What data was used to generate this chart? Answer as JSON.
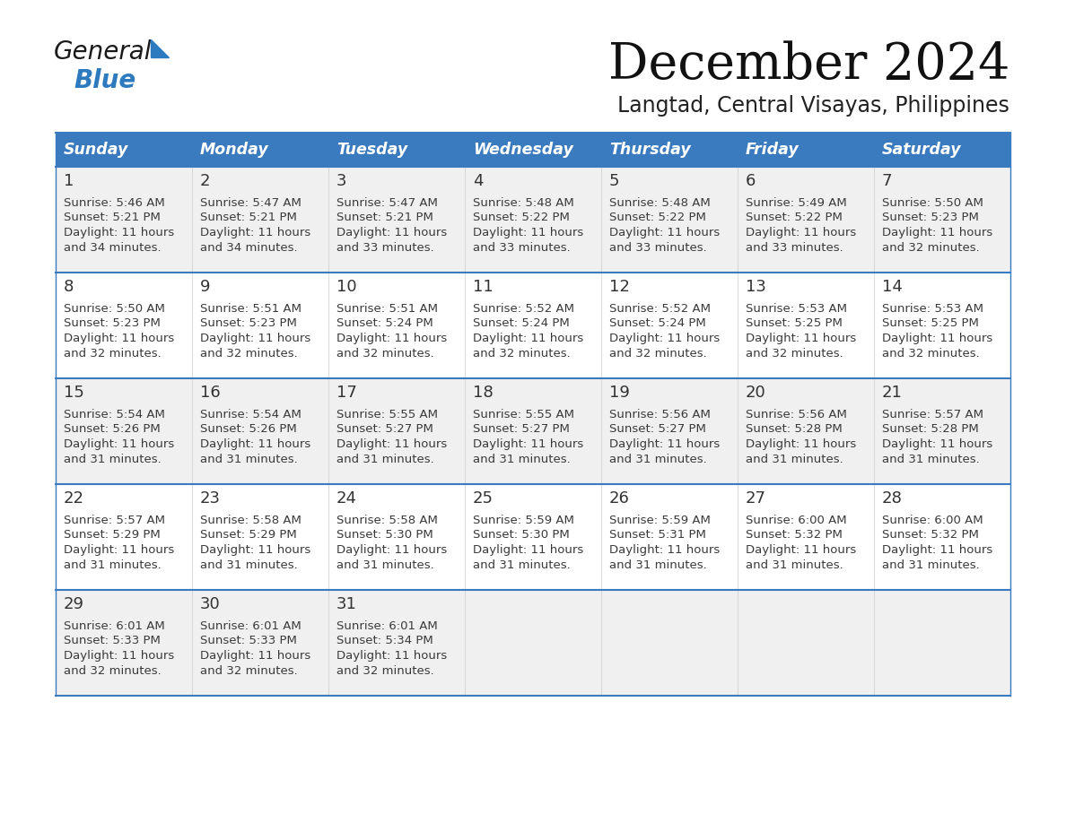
{
  "title": "December 2024",
  "subtitle": "Langtad, Central Visayas, Philippines",
  "header_bg_color": "#3a7abf",
  "header_text_color": "#ffffff",
  "row_bg_even": "#f0f0f0",
  "row_bg_odd": "#ffffff",
  "border_color": "#3a7abf",
  "days_of_week": [
    "Sunday",
    "Monday",
    "Tuesday",
    "Wednesday",
    "Thursday",
    "Friday",
    "Saturday"
  ],
  "calendar": [
    [
      {
        "day": "1",
        "sunrise": "5:46 AM",
        "sunset": "5:21 PM",
        "daylight_h": "11 hours",
        "daylight_m": "and 34 minutes."
      },
      {
        "day": "2",
        "sunrise": "5:47 AM",
        "sunset": "5:21 PM",
        "daylight_h": "11 hours",
        "daylight_m": "and 34 minutes."
      },
      {
        "day": "3",
        "sunrise": "5:47 AM",
        "sunset": "5:21 PM",
        "daylight_h": "11 hours",
        "daylight_m": "and 33 minutes."
      },
      {
        "day": "4",
        "sunrise": "5:48 AM",
        "sunset": "5:22 PM",
        "daylight_h": "11 hours",
        "daylight_m": "and 33 minutes."
      },
      {
        "day": "5",
        "sunrise": "5:48 AM",
        "sunset": "5:22 PM",
        "daylight_h": "11 hours",
        "daylight_m": "and 33 minutes."
      },
      {
        "day": "6",
        "sunrise": "5:49 AM",
        "sunset": "5:22 PM",
        "daylight_h": "11 hours",
        "daylight_m": "and 33 minutes."
      },
      {
        "day": "7",
        "sunrise": "5:50 AM",
        "sunset": "5:23 PM",
        "daylight_h": "11 hours",
        "daylight_m": "and 32 minutes."
      }
    ],
    [
      {
        "day": "8",
        "sunrise": "5:50 AM",
        "sunset": "5:23 PM",
        "daylight_h": "11 hours",
        "daylight_m": "and 32 minutes."
      },
      {
        "day": "9",
        "sunrise": "5:51 AM",
        "sunset": "5:23 PM",
        "daylight_h": "11 hours",
        "daylight_m": "and 32 minutes."
      },
      {
        "day": "10",
        "sunrise": "5:51 AM",
        "sunset": "5:24 PM",
        "daylight_h": "11 hours",
        "daylight_m": "and 32 minutes."
      },
      {
        "day": "11",
        "sunrise": "5:52 AM",
        "sunset": "5:24 PM",
        "daylight_h": "11 hours",
        "daylight_m": "and 32 minutes."
      },
      {
        "day": "12",
        "sunrise": "5:52 AM",
        "sunset": "5:24 PM",
        "daylight_h": "11 hours",
        "daylight_m": "and 32 minutes."
      },
      {
        "day": "13",
        "sunrise": "5:53 AM",
        "sunset": "5:25 PM",
        "daylight_h": "11 hours",
        "daylight_m": "and 32 minutes."
      },
      {
        "day": "14",
        "sunrise": "5:53 AM",
        "sunset": "5:25 PM",
        "daylight_h": "11 hours",
        "daylight_m": "and 32 minutes."
      }
    ],
    [
      {
        "day": "15",
        "sunrise": "5:54 AM",
        "sunset": "5:26 PM",
        "daylight_h": "11 hours",
        "daylight_m": "and 31 minutes."
      },
      {
        "day": "16",
        "sunrise": "5:54 AM",
        "sunset": "5:26 PM",
        "daylight_h": "11 hours",
        "daylight_m": "and 31 minutes."
      },
      {
        "day": "17",
        "sunrise": "5:55 AM",
        "sunset": "5:27 PM",
        "daylight_h": "11 hours",
        "daylight_m": "and 31 minutes."
      },
      {
        "day": "18",
        "sunrise": "5:55 AM",
        "sunset": "5:27 PM",
        "daylight_h": "11 hours",
        "daylight_m": "and 31 minutes."
      },
      {
        "day": "19",
        "sunrise": "5:56 AM",
        "sunset": "5:27 PM",
        "daylight_h": "11 hours",
        "daylight_m": "and 31 minutes."
      },
      {
        "day": "20",
        "sunrise": "5:56 AM",
        "sunset": "5:28 PM",
        "daylight_h": "11 hours",
        "daylight_m": "and 31 minutes."
      },
      {
        "day": "21",
        "sunrise": "5:57 AM",
        "sunset": "5:28 PM",
        "daylight_h": "11 hours",
        "daylight_m": "and 31 minutes."
      }
    ],
    [
      {
        "day": "22",
        "sunrise": "5:57 AM",
        "sunset": "5:29 PM",
        "daylight_h": "11 hours",
        "daylight_m": "and 31 minutes."
      },
      {
        "day": "23",
        "sunrise": "5:58 AM",
        "sunset": "5:29 PM",
        "daylight_h": "11 hours",
        "daylight_m": "and 31 minutes."
      },
      {
        "day": "24",
        "sunrise": "5:58 AM",
        "sunset": "5:30 PM",
        "daylight_h": "11 hours",
        "daylight_m": "and 31 minutes."
      },
      {
        "day": "25",
        "sunrise": "5:59 AM",
        "sunset": "5:30 PM",
        "daylight_h": "11 hours",
        "daylight_m": "and 31 minutes."
      },
      {
        "day": "26",
        "sunrise": "5:59 AM",
        "sunset": "5:31 PM",
        "daylight_h": "11 hours",
        "daylight_m": "and 31 minutes."
      },
      {
        "day": "27",
        "sunrise": "6:00 AM",
        "sunset": "5:32 PM",
        "daylight_h": "11 hours",
        "daylight_m": "and 31 minutes."
      },
      {
        "day": "28",
        "sunrise": "6:00 AM",
        "sunset": "5:32 PM",
        "daylight_h": "11 hours",
        "daylight_m": "and 31 minutes."
      }
    ],
    [
      {
        "day": "29",
        "sunrise": "6:01 AM",
        "sunset": "5:33 PM",
        "daylight_h": "11 hours",
        "daylight_m": "and 32 minutes."
      },
      {
        "day": "30",
        "sunrise": "6:01 AM",
        "sunset": "5:33 PM",
        "daylight_h": "11 hours",
        "daylight_m": "and 32 minutes."
      },
      {
        "day": "31",
        "sunrise": "6:01 AM",
        "sunset": "5:34 PM",
        "daylight_h": "11 hours",
        "daylight_m": "and 32 minutes."
      },
      null,
      null,
      null,
      null
    ]
  ],
  "fig_width": 11.88,
  "fig_height": 9.18,
  "dpi": 100
}
